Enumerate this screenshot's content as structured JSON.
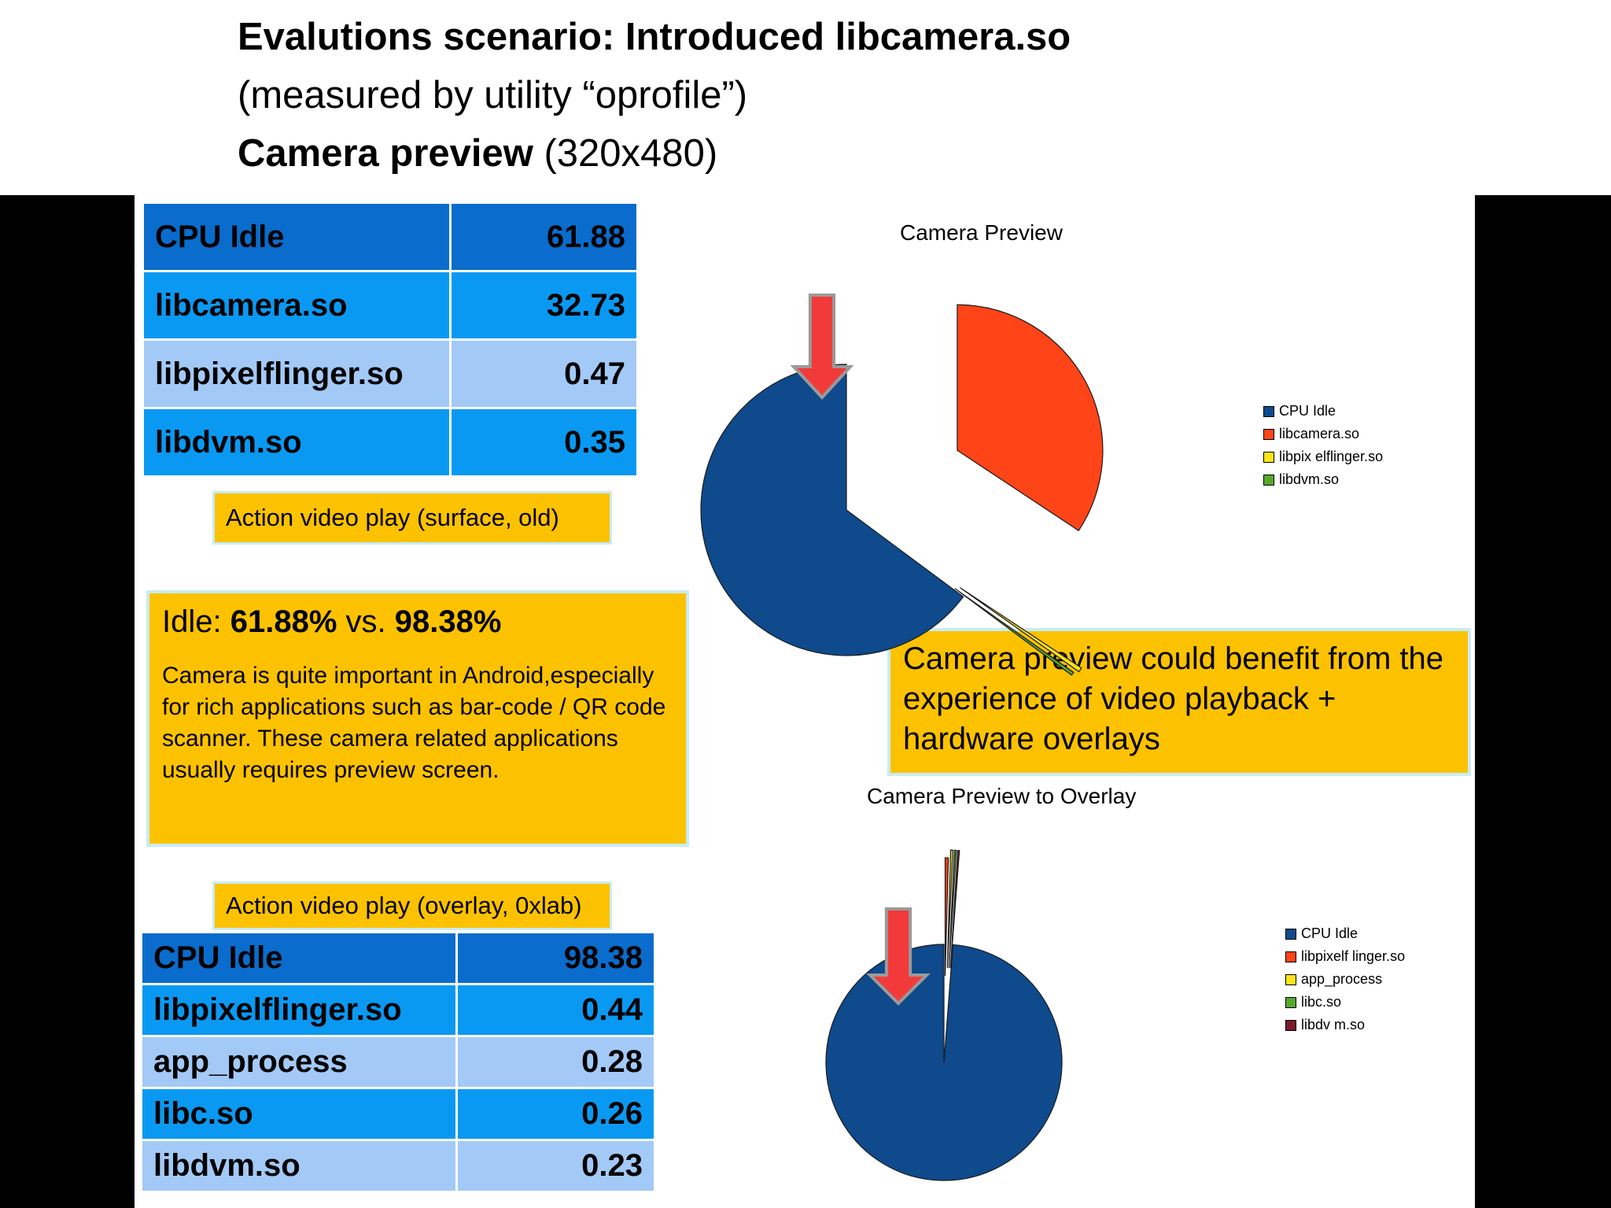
{
  "header": {
    "line1_bold": "Evalutions scenario: Introduced libcamera.so",
    "line2": "(measured by utility “oprofile”)",
    "line3_bold": "Camera preview",
    "line3_rest": " (320x480)"
  },
  "table_surface": {
    "rows": [
      {
        "name": "CPU Idle",
        "value": "61.88",
        "color": "#0a6ccc"
      },
      {
        "name": "libcamera.so",
        "value": "32.73",
        "color": "#0a99f2"
      },
      {
        "name": "libpixelflinger.so",
        "value": "0.47",
        "color": "#a3c9f7"
      },
      {
        "name": "libdvm.so",
        "value": "0.35",
        "color": "#0a99f2"
      }
    ]
  },
  "label_surface": "Action video play (surface, old)",
  "note": {
    "idle_prefix": "Idle: ",
    "idle_a": "61.88%",
    "idle_vs": " vs. ",
    "idle_b": "98.38%",
    "text": "Camera is quite important in Android,especially for rich applications such as bar-code / QR code scanner.  These camera related applications usually requires preview screen."
  },
  "callout": "Camera preview could benefit from the experience of video playback + hardware overlays",
  "label_overlay": "Action video play (overlay, 0xlab)",
  "table_overlay": {
    "rows": [
      {
        "name": "CPU Idle",
        "value": "98.38",
        "color": "#0a6ccc"
      },
      {
        "name": "libpixelflinger.so",
        "value": "0.44",
        "color": "#0a99f2"
      },
      {
        "name": "app_process",
        "value": "0.28",
        "color": "#a3c9f7"
      },
      {
        "name": "libc.so",
        "value": "0.26",
        "color": "#0a99f2"
      },
      {
        "name": "libdvm.so",
        "value": "0.23",
        "color": "#a3c9f7"
      }
    ]
  },
  "chart_data": [
    {
      "type": "pie",
      "title": "Camera Preview",
      "exploded": true,
      "legend_position": "right",
      "series": [
        {
          "name": "CPU Idle",
          "value": 61.88,
          "color": "#0e4a8c",
          "label": "CPU Idle"
        },
        {
          "name": "libcamera.so",
          "value": 32.73,
          "color": "#ff4418",
          "label": "libcamera.so"
        },
        {
          "name": "libpixelflinger.so",
          "value": 0.47,
          "color": "#ffe41c",
          "label": "libpix elflinger.so"
        },
        {
          "name": "libdvm.so",
          "value": 0.35,
          "color": "#5aa82a",
          "label": "libdvm.so"
        }
      ]
    },
    {
      "type": "pie",
      "title": "Camera Preview to Overlay",
      "exploded": true,
      "legend_position": "right",
      "series": [
        {
          "name": "CPU Idle",
          "value": 98.38,
          "color": "#0e4a8c",
          "label": "CPU Idle"
        },
        {
          "name": "libpixelflinger.so",
          "value": 0.44,
          "color": "#ff4418",
          "label": "libpixelf linger.so"
        },
        {
          "name": "app_process",
          "value": 0.28,
          "color": "#ffe41c",
          "label": "app_process"
        },
        {
          "name": "libc.so",
          "value": 0.26,
          "color": "#5aa82a",
          "label": "libc.so"
        },
        {
          "name": "libdvm.so",
          "value": 0.23,
          "color": "#7a1a2a",
          "label": "libdv m.so"
        }
      ]
    }
  ],
  "colors": {
    "note_bg": "#fcc200",
    "arrow": "#f23a3a",
    "arrow_outline": "#9a9a9a"
  }
}
